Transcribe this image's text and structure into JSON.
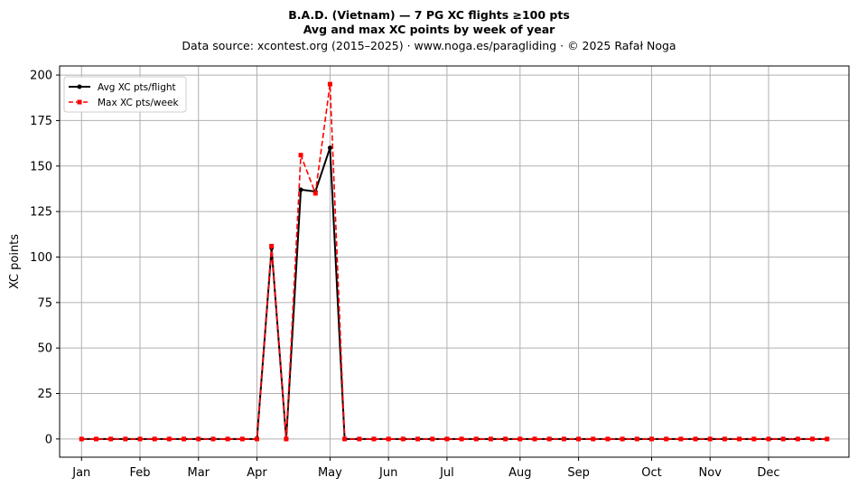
{
  "header": {
    "title": "B.A.D. (Vietnam)  —  7 PG XC flights ≥100 pts",
    "subtitle": "Avg and max XC points by week of year",
    "source": "Data source: xcontest.org (2015–2025)  ·  www.noga.es/paragliding  ·  © 2025 Rafał Noga"
  },
  "chart_data": {
    "type": "line",
    "title": "B.A.D. (Vietnam)  —  7 PG XC flights ≥100 pts",
    "subtitle": "Avg and max XC points by week of year",
    "xlabel": "",
    "ylabel": "XC points",
    "x": [
      1,
      2,
      3,
      4,
      5,
      6,
      7,
      8,
      9,
      10,
      11,
      12,
      13,
      14,
      15,
      16,
      17,
      18,
      19,
      20,
      21,
      22,
      23,
      24,
      25,
      26,
      27,
      28,
      29,
      30,
      31,
      32,
      33,
      34,
      35,
      36,
      37,
      38,
      39,
      40,
      41,
      42,
      43,
      44,
      45,
      46,
      47,
      48,
      49,
      50,
      51,
      52
    ],
    "xlim": [
      -0.5,
      53.5
    ],
    "ylim": [
      -10,
      205
    ],
    "yticks": [
      0,
      25,
      50,
      75,
      100,
      125,
      150,
      175,
      200
    ],
    "xticks": [
      {
        "value": 1,
        "label": "Jan"
      },
      {
        "value": 5,
        "label": "Feb"
      },
      {
        "value": 9,
        "label": "Mar"
      },
      {
        "value": 13,
        "label": "Apr"
      },
      {
        "value": 18,
        "label": "May"
      },
      {
        "value": 22,
        "label": "Jun"
      },
      {
        "value": 26,
        "label": "Jul"
      },
      {
        "value": 31,
        "label": "Aug"
      },
      {
        "value": 35,
        "label": "Sep"
      },
      {
        "value": 40,
        "label": "Oct"
      },
      {
        "value": 44,
        "label": "Nov"
      },
      {
        "value": 48,
        "label": "Dec"
      }
    ],
    "grid": true,
    "legend_position": "top-left",
    "series": [
      {
        "name": "Avg XC pts/flight",
        "color": "#000000",
        "linestyle": "solid",
        "marker": "circle",
        "values": [
          0,
          0,
          0,
          0,
          0,
          0,
          0,
          0,
          0,
          0,
          0,
          0,
          0,
          105,
          0,
          137,
          136,
          160,
          0,
          0,
          0,
          0,
          0,
          0,
          0,
          0,
          0,
          0,
          0,
          0,
          0,
          0,
          0,
          0,
          0,
          0,
          0,
          0,
          0,
          0,
          0,
          0,
          0,
          0,
          0,
          0,
          0,
          0,
          0,
          0,
          0,
          0
        ]
      },
      {
        "name": "Max XC pts/week",
        "color": "#ff0000",
        "linestyle": "dashed",
        "marker": "square",
        "values": [
          0,
          0,
          0,
          0,
          0,
          0,
          0,
          0,
          0,
          0,
          0,
          0,
          0,
          106,
          0,
          156,
          135,
          195,
          0,
          0,
          0,
          0,
          0,
          0,
          0,
          0,
          0,
          0,
          0,
          0,
          0,
          0,
          0,
          0,
          0,
          0,
          0,
          0,
          0,
          0,
          0,
          0,
          0,
          0,
          0,
          0,
          0,
          0,
          0,
          0,
          0,
          0
        ]
      }
    ]
  }
}
